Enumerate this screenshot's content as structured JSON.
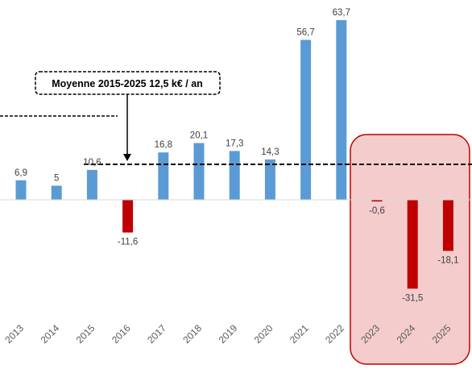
{
  "chart_data": {
    "type": "bar",
    "title": "",
    "xlabel": "",
    "ylabel": "",
    "categories": [
      "2013",
      "2014",
      "2015",
      "2016",
      "2017",
      "2018",
      "2019",
      "2020",
      "2021",
      "2022",
      "2023",
      "2024",
      "2025"
    ],
    "values": [
      6.9,
      5,
      10.6,
      -11.6,
      16.8,
      20.1,
      17.3,
      14.3,
      56.7,
      63.7,
      -0.6,
      -31.5,
      -18.1
    ],
    "value_labels": [
      "6,9",
      "5",
      "10,6",
      "-11,6",
      "16,8",
      "20,1",
      "17,3",
      "14,3",
      "56,7",
      "63,7",
      "-0,6",
      "-31,5",
      "-18,1"
    ],
    "average_line": {
      "label": "Moyenne 2015-2025  12,5 k€ / an",
      "value": 12.5
    },
    "highlighted_categories": [
      "2023",
      "2024",
      "2025"
    ],
    "legend": "none",
    "grid": false,
    "colors": {
      "positive": "#5b9bd5",
      "negative": "#c00000",
      "highlight_fill": "#f4cccc",
      "highlight_stroke": "#c00000",
      "average_line": "#000000"
    }
  }
}
